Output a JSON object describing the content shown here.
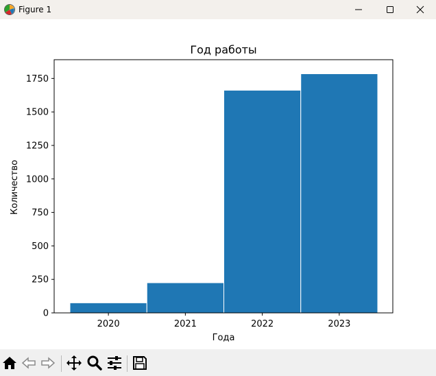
{
  "window": {
    "title": "Figure 1",
    "controls": {
      "minimize": "minimize",
      "maximize": "maximize",
      "close": "close"
    }
  },
  "toolbar": {
    "buttons": [
      {
        "name": "home-icon"
      },
      {
        "name": "back-icon"
      },
      {
        "name": "forward-icon"
      },
      {
        "name": "pan-icon"
      },
      {
        "name": "zoom-icon"
      },
      {
        "name": "configure-subplots-icon"
      },
      {
        "name": "save-icon"
      }
    ]
  },
  "chart_data": {
    "type": "bar",
    "title": "Год работы",
    "xlabel": "Года",
    "ylabel": "Количество",
    "categories": [
      "2020",
      "2021",
      "2022",
      "2023"
    ],
    "values": [
      75,
      225,
      1662,
      1785
    ],
    "ylim": [
      0,
      1890
    ],
    "yticks": [
      0,
      250,
      500,
      750,
      1000,
      1250,
      1500,
      1750
    ],
    "bar_color": "#1f77b4",
    "grid": false,
    "legend": "none"
  }
}
